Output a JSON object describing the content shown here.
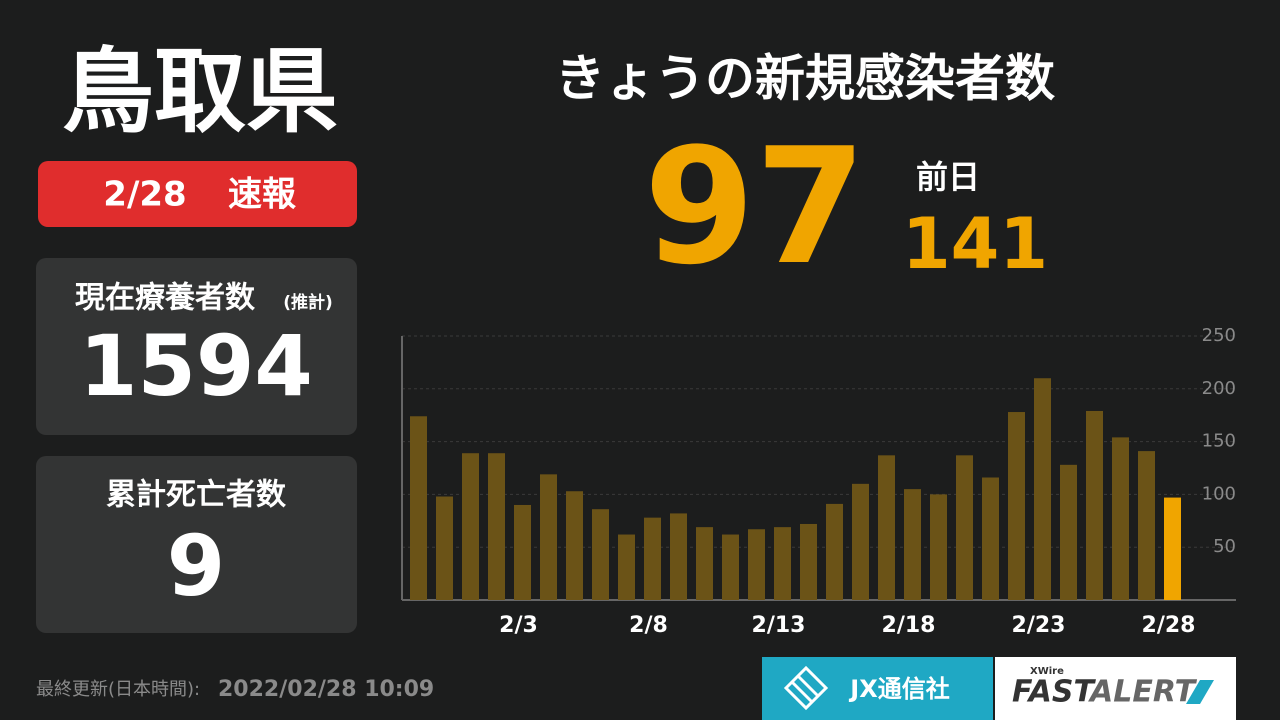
{
  "header": {
    "prefecture": "鳥取県",
    "date": "2/28",
    "flash": "速報",
    "headline": "きょうの新規感染者数"
  },
  "today": {
    "value": 97,
    "prev_label": "前日",
    "prev_value": 141
  },
  "stats": [
    {
      "label": "現在療養者数",
      "note": "(推計)",
      "value": 1594
    },
    {
      "label": "累計死亡者数",
      "value": 9
    }
  ],
  "footer": {
    "updated_label": "最終更新(日本時間):",
    "updated": "2022/02/28 10:09",
    "brand": "JX通信社",
    "product_tag": "XWire",
    "product_a": "FAST",
    "product_b": "ALERT"
  },
  "chart_data": {
    "type": "bar",
    "categories": [
      null,
      null,
      null,
      null,
      "2/3",
      null,
      null,
      null,
      null,
      "2/8",
      null,
      null,
      null,
      null,
      "2/13",
      null,
      null,
      null,
      null,
      "2/18",
      null,
      null,
      null,
      null,
      "2/23",
      null,
      null,
      null,
      null,
      "2/28"
    ],
    "values": [
      174,
      98,
      139,
      139,
      90,
      119,
      103,
      86,
      62,
      78,
      82,
      69,
      62,
      67,
      69,
      72,
      91,
      110,
      137,
      105,
      100,
      137,
      116,
      178,
      210,
      128,
      179,
      154,
      141,
      97
    ],
    "colors": [
      "#6b5317",
      "#6b5317",
      "#6b5317",
      "#6b5317",
      "#6b5317",
      "#6b5317",
      "#6b5317",
      "#6b5317",
      "#6b5317",
      "#6b5317",
      "#6b5317",
      "#6b5317",
      "#6b5317",
      "#6b5317",
      "#6b5317",
      "#6b5317",
      "#6b5317",
      "#6b5317",
      "#6b5317",
      "#6b5317",
      "#6b5317",
      "#6b5317",
      "#6b5317",
      "#6b5317",
      "#6b5317",
      "#6b5317",
      "#6b5317",
      "#6b5317",
      "#6b5317",
      "#f0a500"
    ],
    "ylim": [
      0,
      250
    ],
    "yticks": [
      50,
      100,
      150,
      200,
      250
    ],
    "grid": true
  }
}
